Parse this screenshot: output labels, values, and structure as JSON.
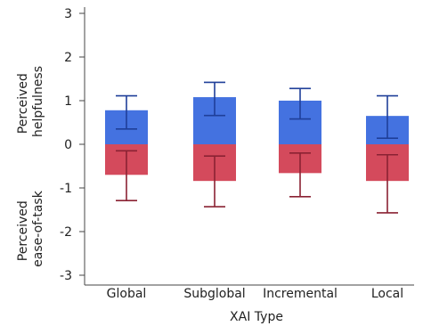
{
  "chart_data": {
    "type": "bar",
    "xlabel": "XAI Type",
    "ylabel_top": [
      "Perceived",
      "helpfulness"
    ],
    "ylabel_bottom": [
      "Perceived",
      "ease-of-task"
    ],
    "categories": [
      "Global",
      "Subglobal",
      "Incremental",
      "Local"
    ],
    "ylim": [
      -3.3,
      3.3
    ],
    "yticks": [
      3,
      2,
      1,
      0,
      -1,
      -2,
      -3
    ],
    "ytick_labels": [
      "3",
      "2",
      "1",
      "0",
      "-1",
      "-2",
      "-3"
    ],
    "grid": false,
    "series": [
      {
        "values": [
          0.78,
          1.08,
          1.0,
          0.65
        ],
        "error_low": [
          0.35,
          0.66,
          0.58,
          0.14
        ],
        "error_high": [
          1.11,
          1.42,
          1.28,
          1.11
        ],
        "color": "#4472e0",
        "error_color": "#1f3f99"
      },
      {
        "values": [
          -0.7,
          -0.84,
          -0.66,
          -0.84
        ],
        "error_low": [
          -1.29,
          -1.43,
          -1.2,
          -1.57
        ],
        "error_high": [
          -0.15,
          -0.27,
          -0.2,
          -0.24
        ],
        "color": "#d44a5c",
        "error_color": "#8a2233"
      }
    ]
  }
}
